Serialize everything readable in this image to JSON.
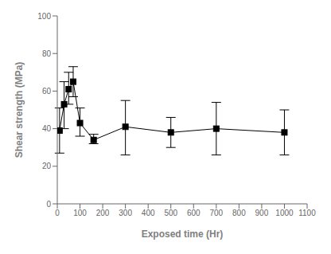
{
  "chart_data": {
    "type": "line",
    "x": [
      10,
      30,
      50,
      70,
      100,
      160,
      300,
      500,
      700,
      1000
    ],
    "values": [
      39,
      53,
      61,
      65,
      43,
      34,
      41,
      38,
      40,
      38
    ],
    "error_lo": [
      12,
      13,
      8,
      8,
      7,
      2,
      15,
      8,
      14,
      12
    ],
    "error_hi": [
      12,
      12,
      9,
      8,
      8,
      3,
      14,
      8,
      14,
      12
    ],
    "xlabel": "Exposed time (Hr)",
    "ylabel": "Shear strength (MPa)",
    "xlim": [
      0,
      1100
    ],
    "ylim": [
      0,
      100
    ],
    "xticks": [
      0,
      100,
      200,
      300,
      400,
      500,
      600,
      700,
      800,
      900,
      1000,
      1100
    ],
    "yticks": [
      0,
      20,
      40,
      60,
      80,
      100
    ],
    "color": "#000000",
    "marker": "square",
    "line_style": "solid",
    "grid": false
  }
}
